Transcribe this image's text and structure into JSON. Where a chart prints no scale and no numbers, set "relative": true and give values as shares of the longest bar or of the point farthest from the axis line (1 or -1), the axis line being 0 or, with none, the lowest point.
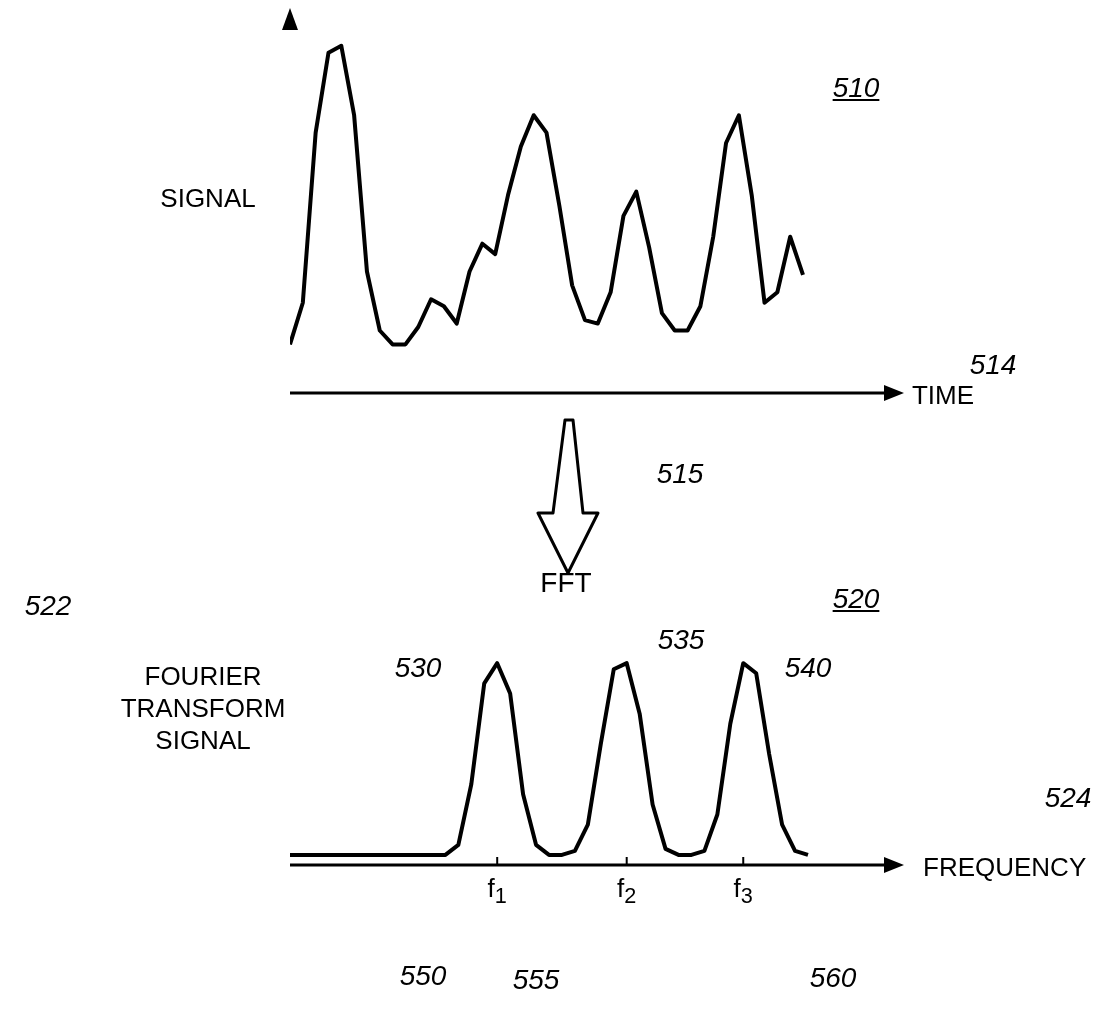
{
  "chart_data": [
    {
      "type": "line",
      "relative": true,
      "ylabel": "SIGNAL",
      "xlabel": "TIME",
      "annotations": [
        "510",
        "514"
      ],
      "categories": [
        null,
        null,
        null,
        null,
        null,
        null,
        null,
        null,
        null,
        null,
        null,
        null,
        null,
        null,
        null,
        null,
        null,
        null,
        null,
        null,
        null,
        null,
        null,
        null,
        null,
        null,
        null,
        null,
        null,
        null,
        null,
        null,
        null,
        null,
        null,
        null,
        null,
        null,
        null,
        null,
        null
      ],
      "series": [
        {
          "color": "#000000",
          "values": [
            0.14,
            0.26,
            0.75,
            0.98,
            1.0,
            0.8,
            0.35,
            0.18,
            0.14,
            0.14,
            0.19,
            0.27,
            0.25,
            0.2,
            0.35,
            0.43,
            0.4,
            0.57,
            0.71,
            0.8,
            0.75,
            0.54,
            0.31,
            0.21,
            0.2,
            0.29,
            0.51,
            0.58,
            0.42,
            0.23,
            0.18,
            0.18,
            0.25,
            0.45,
            0.72,
            0.8,
            0.57,
            0.26,
            0.29,
            0.45,
            0.34
          ]
        }
      ],
      "marker": "none",
      "grid": false,
      "legend": false
    },
    {
      "type": "line",
      "relative": true,
      "ylabel": "FOURIER TRANSFORM SIGNAL",
      "xlabel": "FREQUENCY",
      "annotations": [
        "515",
        "FFT",
        "520",
        "522",
        "530",
        "535",
        "540",
        "524",
        "550",
        "555",
        "560"
      ],
      "categories": [
        null,
        null,
        null,
        null,
        null,
        null,
        null,
        null,
        null,
        null,
        null,
        null,
        null,
        null,
        null,
        null,
        "f$_{1}$",
        null,
        null,
        null,
        null,
        null,
        null,
        null,
        null,
        null,
        "f$_{2}$",
        null,
        null,
        null,
        null,
        null,
        null,
        null,
        null,
        "f$_{3}$",
        null,
        null,
        null,
        null,
        null
      ],
      "series": [
        {
          "color": "#000000",
          "values": [
            0.05,
            0.05,
            0.05,
            0.05,
            0.05,
            0.05,
            0.05,
            0.05,
            0.05,
            0.05,
            0.05,
            0.05,
            0.05,
            0.1,
            0.4,
            0.9,
            1.0,
            0.85,
            0.35,
            0.1,
            0.05,
            0.05,
            0.07,
            0.2,
            0.6,
            0.97,
            1.0,
            0.75,
            0.3,
            0.08,
            0.05,
            0.05,
            0.07,
            0.25,
            0.7,
            1.0,
            0.95,
            0.55,
            0.2,
            0.07,
            0.05
          ]
        }
      ],
      "marker": "none",
      "grid": false,
      "legend": false
    }
  ]
}
